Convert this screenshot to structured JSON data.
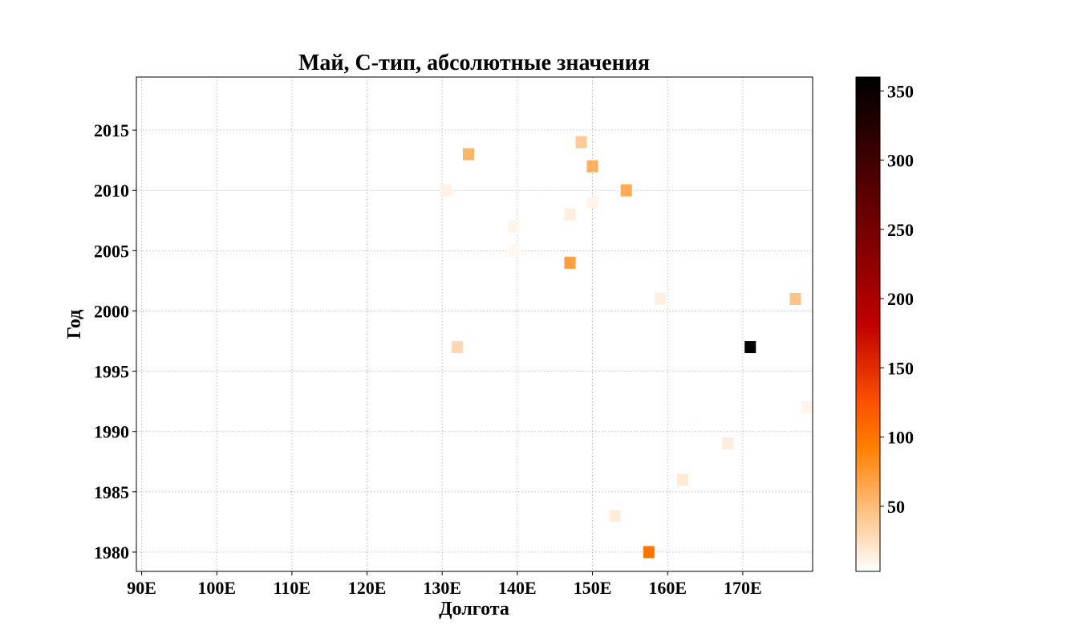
{
  "chart_data": {
    "type": "heatmap",
    "title": "Май, С-тип, абсолютные значения",
    "xlabel": "Долгота",
    "ylabel": "Год",
    "xlim": [
      89.3,
      179.3
    ],
    "ylim": [
      1978.4,
      2019.4
    ],
    "xticks": [
      {
        "value": 90,
        "label": "90E"
      },
      {
        "value": 100,
        "label": "100E"
      },
      {
        "value": 110,
        "label": "110E"
      },
      {
        "value": 120,
        "label": "120E"
      },
      {
        "value": 130,
        "label": "130E"
      },
      {
        "value": 140,
        "label": "140E"
      },
      {
        "value": 150,
        "label": "150E"
      },
      {
        "value": 160,
        "label": "160E"
      },
      {
        "value": 170,
        "label": "170E"
      }
    ],
    "yticks": [
      {
        "value": 1980,
        "label": "1980"
      },
      {
        "value": 1985,
        "label": "1985"
      },
      {
        "value": 1990,
        "label": "1990"
      },
      {
        "value": 1995,
        "label": "1995"
      },
      {
        "value": 2000,
        "label": "2000"
      },
      {
        "value": 2005,
        "label": "2005"
      },
      {
        "value": 2010,
        "label": "2010"
      },
      {
        "value": 2015,
        "label": "2015"
      }
    ],
    "grid": true,
    "colormap": "gist_heat_r",
    "colorbar": {
      "range": [
        3,
        360
      ],
      "ticks": [
        {
          "value": 50,
          "label": "50"
        },
        {
          "value": 100,
          "label": "100"
        },
        {
          "value": 150,
          "label": "150"
        },
        {
          "value": 200,
          "label": "200"
        },
        {
          "value": 250,
          "label": "250"
        },
        {
          "value": 300,
          "label": "300"
        },
        {
          "value": 350,
          "label": "350"
        }
      ]
    },
    "points": [
      {
        "lon": 133.5,
        "year": 2013,
        "value": 55
      },
      {
        "lon": 148.5,
        "year": 2014,
        "value": 40
      },
      {
        "lon": 150.0,
        "year": 2012,
        "value": 58
      },
      {
        "lon": 154.5,
        "year": 2010,
        "value": 62
      },
      {
        "lon": 130.5,
        "year": 2010,
        "value": 12
      },
      {
        "lon": 150.0,
        "year": 2009,
        "value": 10
      },
      {
        "lon": 147.0,
        "year": 2008,
        "value": 15
      },
      {
        "lon": 139.5,
        "year": 2007,
        "value": 10
      },
      {
        "lon": 139.5,
        "year": 2005,
        "value": 8
      },
      {
        "lon": 147.0,
        "year": 2004,
        "value": 70
      },
      {
        "lon": 159.0,
        "year": 2001,
        "value": 14
      },
      {
        "lon": 177.0,
        "year": 2001,
        "value": 45
      },
      {
        "lon": 178.0,
        "year": 2003,
        "value": 4
      },
      {
        "lon": 132.0,
        "year": 1997,
        "value": 30
      },
      {
        "lon": 171.0,
        "year": 1997,
        "value": 360
      },
      {
        "lon": 178.5,
        "year": 1992,
        "value": 10
      },
      {
        "lon": 163.5,
        "year": 1991,
        "value": 4
      },
      {
        "lon": 168.0,
        "year": 1989,
        "value": 15
      },
      {
        "lon": 162.0,
        "year": 1986,
        "value": 18
      },
      {
        "lon": 153.0,
        "year": 1983,
        "value": 16
      },
      {
        "lon": 157.5,
        "year": 1980,
        "value": 100
      }
    ]
  }
}
